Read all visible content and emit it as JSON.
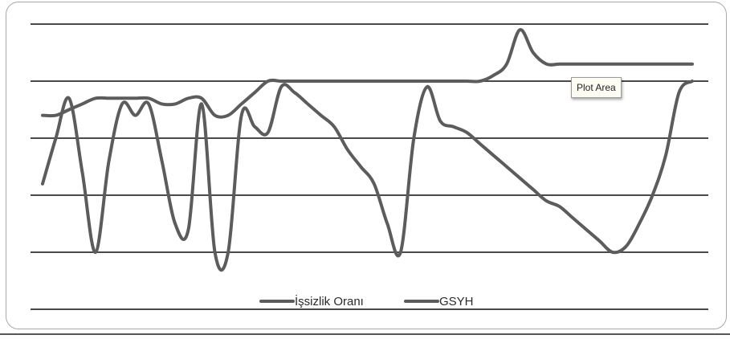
{
  "colors": {
    "gridline": "#4a4a4a",
    "series_line": "#5c5c5c",
    "frame_border": "#a8a8a8"
  },
  "tooltip": {
    "label": "Plot Area"
  },
  "chart_data": {
    "type": "line",
    "grid": true,
    "legend": "bottom-center",
    "ylim": [
      0,
      5
    ],
    "x": [
      0,
      0.5,
      1,
      1.5,
      2,
      2.5,
      3,
      3.5,
      4,
      4.5,
      5,
      5.5,
      6,
      6.5,
      7,
      7.5,
      8,
      8.5,
      9,
      9.5,
      10,
      10.5,
      11,
      11.5,
      12,
      12.5,
      13,
      13.5,
      14,
      14.5,
      15,
      15.5,
      16,
      16.5,
      17,
      17.5,
      18,
      18.5,
      19,
      19.5,
      20,
      20.5,
      21,
      21.5,
      22,
      22.5,
      23,
      23.5,
      24,
      24.5
    ],
    "series": [
      {
        "name": "İşsizlik Oranı",
        "values": [
          2.2,
          3.0,
          3.7,
          2.4,
          1.0,
          2.6,
          3.6,
          3.4,
          3.6,
          2.6,
          1.5,
          1.4,
          3.6,
          1.0,
          1.0,
          3.4,
          3.2,
          3.1,
          3.9,
          3.8,
          3.6,
          3.4,
          3.2,
          2.8,
          2.5,
          2.2,
          1.5,
          1.0,
          3.0,
          3.9,
          3.3,
          3.2,
          3.1,
          2.9,
          2.7,
          2.5,
          2.3,
          2.1,
          1.9,
          1.8,
          1.6,
          1.4,
          1.2,
          1.0,
          1.1,
          1.5,
          2.0,
          2.7,
          3.8,
          4.0
        ]
      },
      {
        "name": "GSYH",
        "values": [
          3.4,
          3.4,
          3.5,
          3.6,
          3.7,
          3.7,
          3.7,
          3.7,
          3.7,
          3.6,
          3.6,
          3.7,
          3.7,
          3.4,
          3.4,
          3.6,
          3.8,
          4.0,
          4.0,
          4.0,
          4.0,
          4.0,
          4.0,
          4.0,
          4.0,
          4.0,
          4.0,
          4.0,
          4.0,
          4.0,
          4.0,
          4.0,
          4.0,
          4.0,
          4.1,
          4.3,
          4.9,
          4.5,
          4.3,
          4.3,
          4.3,
          4.3,
          4.3,
          4.3,
          4.3,
          4.3,
          4.3,
          4.3,
          4.3,
          4.3
        ]
      }
    ]
  }
}
